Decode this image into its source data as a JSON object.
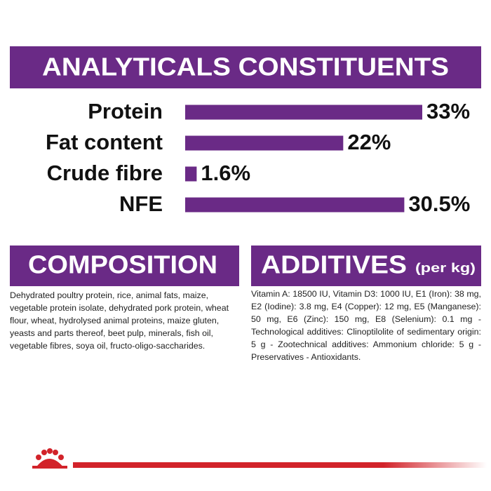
{
  "chart_data": {
    "type": "bar",
    "orientation": "horizontal",
    "title": "ANALYTICALS CONSTITUENTS",
    "categories": [
      "Protein",
      "Fat content",
      "Crude fibre",
      "NFE"
    ],
    "values": [
      33,
      22,
      1.6,
      30.5
    ],
    "value_labels": [
      "33%",
      "22%",
      "1.6%",
      "30.5%"
    ],
    "color": "#6a2a86"
  },
  "composition": {
    "title": "COMPOSITION",
    "text": "Dehydrated poultry protein, rice, animal fats, maize, vegetable protein isolate, dehydrated pork protein, wheat flour, wheat, hydrolysed animal proteins, maize gluten, yeasts and parts thereof, beet pulp, minerals, fish oil, vegetable fibres, soya oil, fructo-oligo-saccharides."
  },
  "additives": {
    "title": "ADDITIVES",
    "subtitle": "(per kg)",
    "text": "Vitamin A: 18500 IU, Vitamin D3: 1000 IU, E1 (Iron): 38 mg, E2 (Iodine): 3.8 mg, E4 (Copper): 12 mg, E5 (Manganese): 50 mg, E6 (Zinc): 150 mg, E8 (Selenium): 0.1 mg -Technological additives: Clinoptilolite of sedimentary origin: 5 g - Zootechnical additives: Ammonium chloride: 5 g - Preservatives - Antioxidants."
  }
}
